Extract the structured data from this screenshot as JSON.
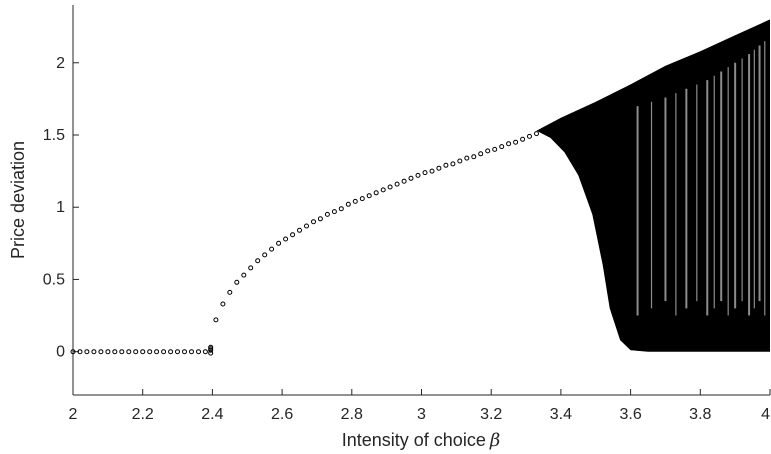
{
  "chart_data": {
    "type": "scatter",
    "title": "",
    "xlabel": "Intensity of choice",
    "xlabel_symbol": "β",
    "ylabel": "Price deviation",
    "xlim": [
      2,
      4
    ],
    "ylim": [
      -0.3,
      2.4
    ],
    "xticks": [
      2,
      2.2,
      2.4,
      2.6,
      2.8,
      3,
      3.2,
      3.4,
      3.6,
      3.8,
      4
    ],
    "xtick_labels": [
      "2",
      "2.2",
      "2.4",
      "2.6",
      "2.8",
      "3",
      "3.2",
      "3.4",
      "3.6",
      "3.8",
      "4"
    ],
    "yticks": [
      0,
      0.5,
      1,
      1.5,
      2
    ],
    "ytick_labels": [
      "0",
      "0.5",
      "1",
      "1.5",
      "2"
    ],
    "grid": false,
    "marker": "open-circle",
    "marker_color": "#000000",
    "series": [
      {
        "points": [
          [
            2.0,
            0
          ],
          [
            2.02,
            0
          ],
          [
            2.04,
            0
          ],
          [
            2.06,
            0
          ],
          [
            2.08,
            0
          ],
          [
            2.1,
            0
          ],
          [
            2.12,
            0
          ],
          [
            2.14,
            0
          ],
          [
            2.16,
            0
          ],
          [
            2.18,
            0
          ],
          [
            2.2,
            0
          ],
          [
            2.22,
            0
          ],
          [
            2.24,
            0
          ],
          [
            2.26,
            0
          ],
          [
            2.28,
            0
          ],
          [
            2.3,
            0
          ],
          [
            2.32,
            0
          ],
          [
            2.34,
            0
          ],
          [
            2.36,
            0
          ],
          [
            2.38,
            0
          ],
          [
            2.395,
            0.01
          ],
          [
            2.395,
            0.02
          ],
          [
            2.395,
            0.03
          ],
          [
            2.395,
            -0.01
          ],
          [
            2.41,
            0.22
          ],
          [
            2.43,
            0.33
          ],
          [
            2.45,
            0.41
          ],
          [
            2.47,
            0.48
          ],
          [
            2.49,
            0.53
          ],
          [
            2.51,
            0.58
          ],
          [
            2.53,
            0.63
          ],
          [
            2.55,
            0.67
          ],
          [
            2.57,
            0.71
          ],
          [
            2.59,
            0.75
          ],
          [
            2.61,
            0.78
          ],
          [
            2.63,
            0.81
          ],
          [
            2.65,
            0.84
          ],
          [
            2.67,
            0.87
          ],
          [
            2.69,
            0.9
          ],
          [
            2.71,
            0.92
          ],
          [
            2.73,
            0.95
          ],
          [
            2.75,
            0.97
          ],
          [
            2.77,
            0.99
          ],
          [
            2.79,
            1.02
          ],
          [
            2.81,
            1.04
          ],
          [
            2.83,
            1.06
          ],
          [
            2.85,
            1.08
          ],
          [
            2.87,
            1.1
          ],
          [
            2.89,
            1.12
          ],
          [
            2.91,
            1.14
          ],
          [
            2.93,
            1.16
          ],
          [
            2.95,
            1.18
          ],
          [
            2.97,
            1.2
          ],
          [
            2.99,
            1.22
          ],
          [
            3.01,
            1.24
          ],
          [
            3.03,
            1.25
          ],
          [
            3.05,
            1.27
          ],
          [
            3.07,
            1.29
          ],
          [
            3.09,
            1.3
          ],
          [
            3.11,
            1.32
          ],
          [
            3.13,
            1.34
          ],
          [
            3.15,
            1.35
          ],
          [
            3.17,
            1.37
          ],
          [
            3.19,
            1.39
          ],
          [
            3.21,
            1.4
          ],
          [
            3.23,
            1.42
          ],
          [
            3.25,
            1.44
          ],
          [
            3.27,
            1.45
          ],
          [
            3.29,
            1.47
          ],
          [
            3.31,
            1.49
          ],
          [
            3.33,
            1.51
          ]
        ]
      }
    ],
    "chaotic_region": {
      "x_start": 3.33,
      "x_end": 4.0,
      "upper_envelope": [
        [
          3.33,
          1.53
        ],
        [
          3.4,
          1.62
        ],
        [
          3.5,
          1.73
        ],
        [
          3.6,
          1.85
        ],
        [
          3.7,
          1.98
        ],
        [
          3.8,
          2.08
        ],
        [
          3.9,
          2.19
        ],
        [
          4.0,
          2.3
        ]
      ],
      "lower_envelope": [
        [
          3.33,
          1.53
        ],
        [
          3.37,
          1.48
        ],
        [
          3.41,
          1.38
        ],
        [
          3.45,
          1.22
        ],
        [
          3.49,
          0.95
        ],
        [
          3.52,
          0.6
        ],
        [
          3.54,
          0.3
        ],
        [
          3.57,
          0.08
        ],
        [
          3.6,
          0.01
        ],
        [
          3.65,
          0
        ],
        [
          4.0,
          0
        ]
      ]
    }
  }
}
